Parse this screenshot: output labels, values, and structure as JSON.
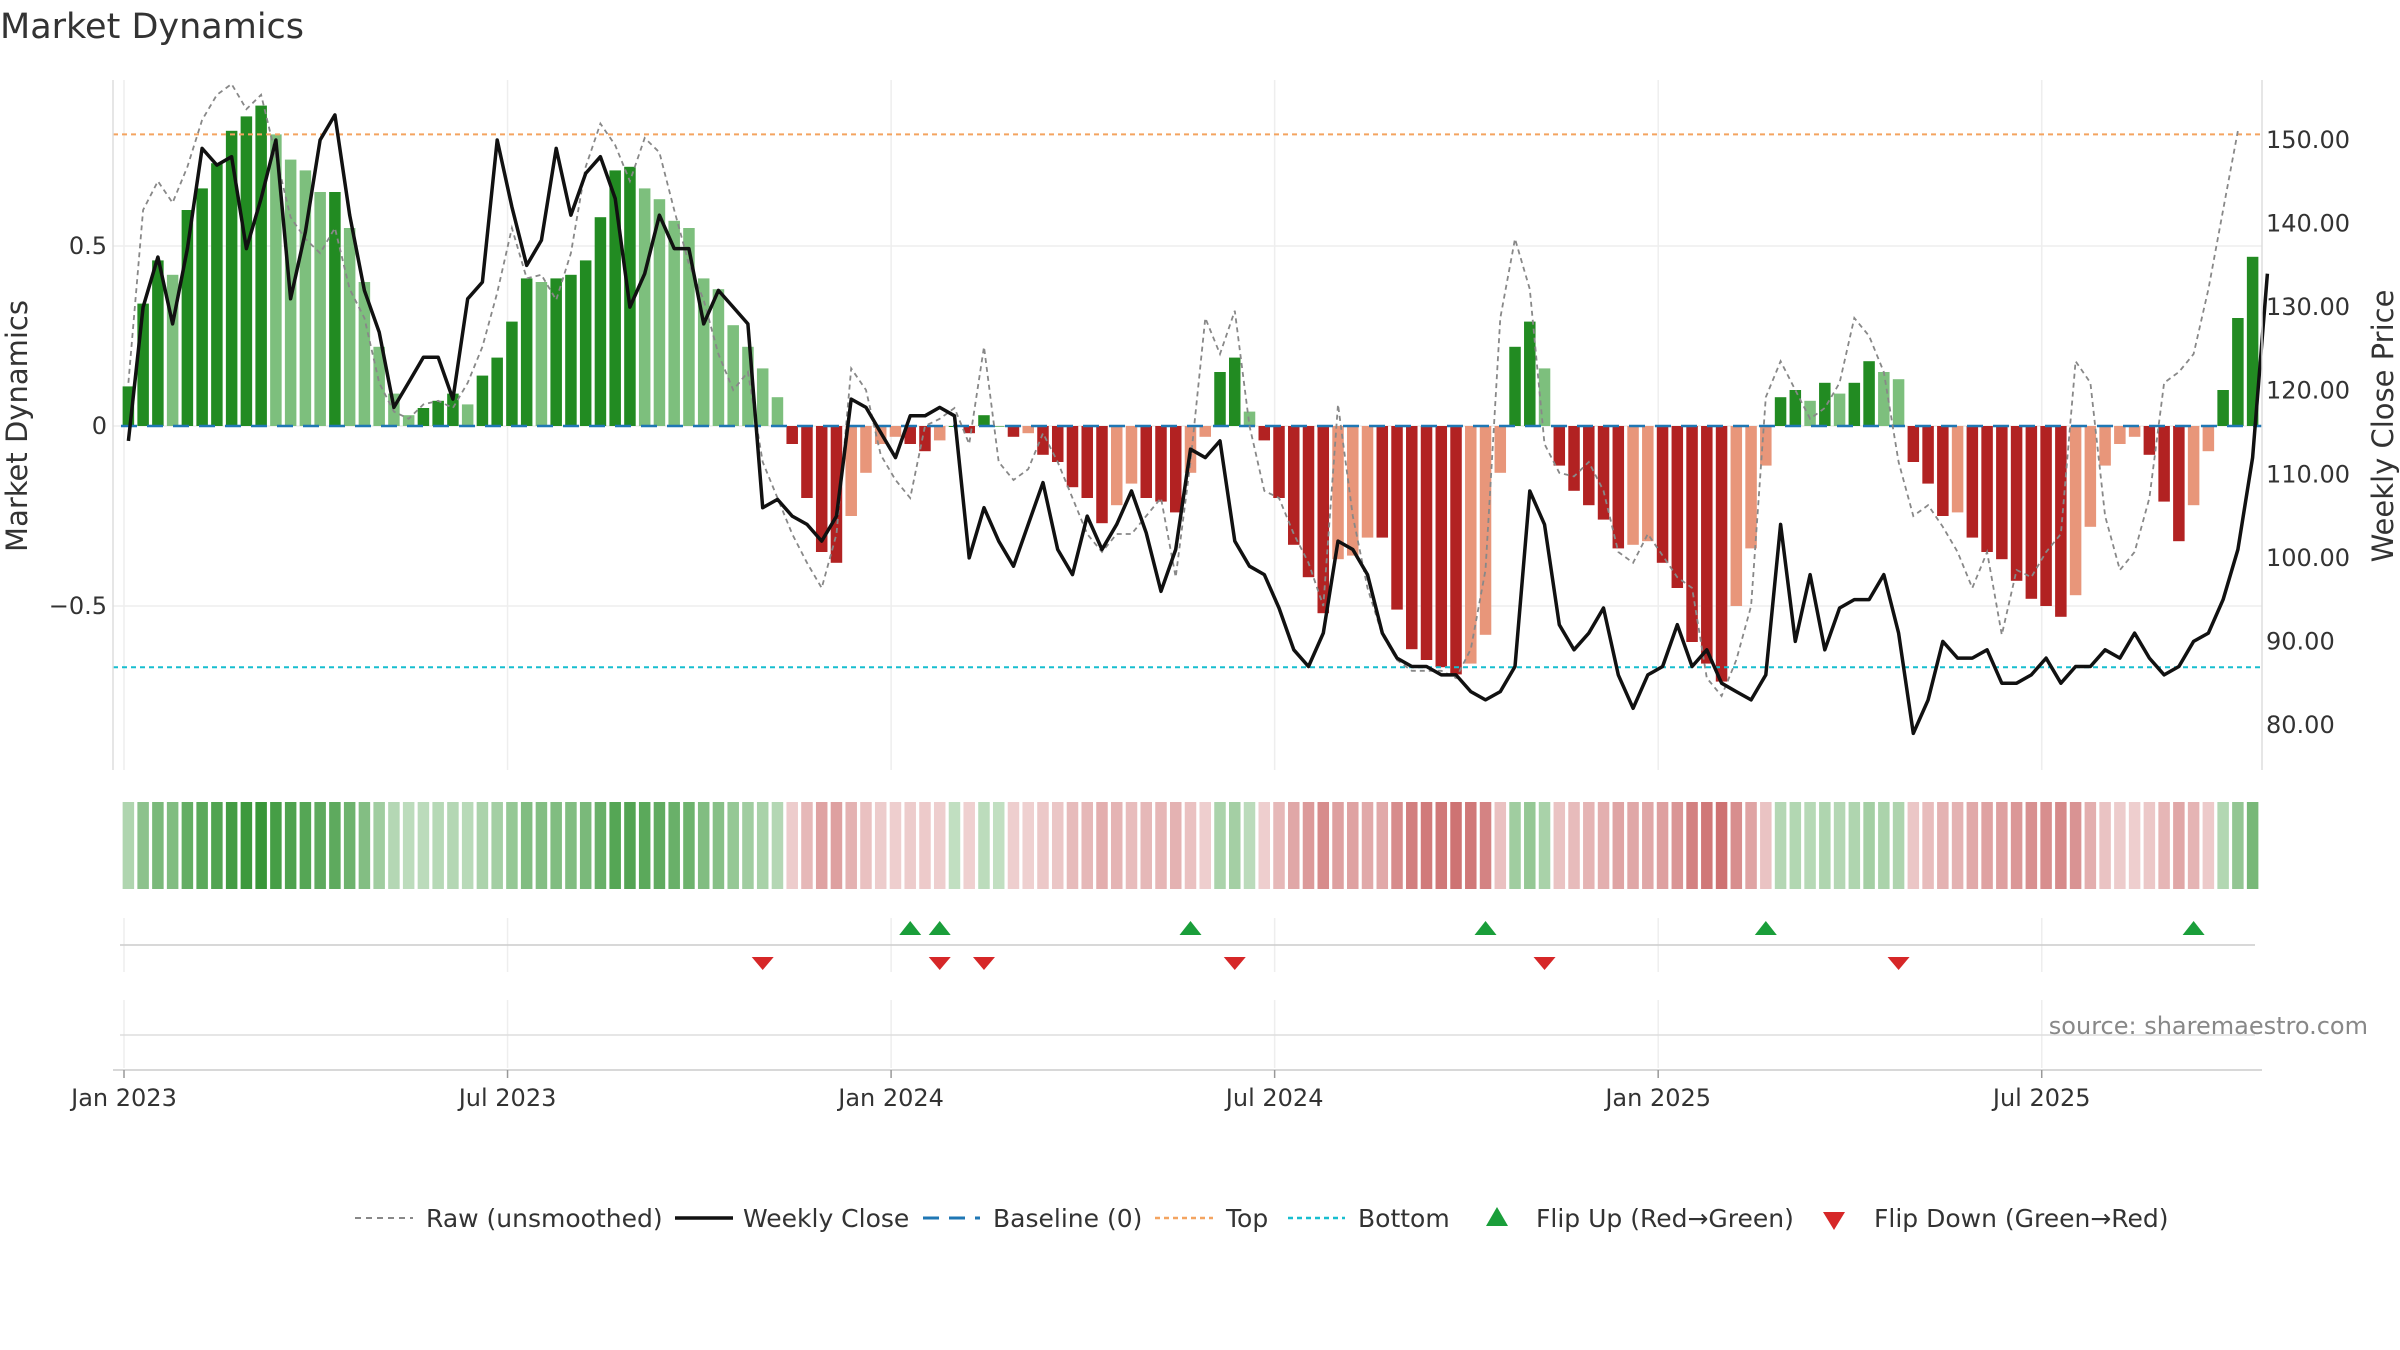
{
  "title": "Market Dynamics",
  "source": "source: sharemaestro.com",
  "colors": {
    "strong_green": "#228b22",
    "light_green": "#7dbf7d",
    "strong_red": "#b22222",
    "light_red": "#e8967a",
    "close_line": "#111111",
    "raw_line": "#888888",
    "baseline": "#1f77b4",
    "top": "#f4a460",
    "bottom": "#17becf",
    "flip_up": "#1a9e3a",
    "flip_down": "#d62728"
  },
  "chart_data": {
    "type": "bar",
    "title": "Market Dynamics",
    "xlabel": "",
    "ylabel_left": "Market Dynamics",
    "ylabel_right": "Weekly Close Price",
    "x_ticks": [
      "Jan 2023",
      "Jul 2023",
      "Jan 2024",
      "Jul 2024",
      "Jan 2025",
      "Jul 2025"
    ],
    "y_ticks_left": [
      "0.5",
      "0",
      "−0.5"
    ],
    "y_ticks_right": [
      "80.00",
      "90.00",
      "100.00",
      "110.00",
      "120.00",
      "130.00",
      "140.00",
      "150.00"
    ],
    "ylim_left": [
      -0.96,
      0.96
    ],
    "ylim_right": [
      75,
      158
    ],
    "grid": true,
    "legend_position": "bottom",
    "reference_lines": {
      "top": 0.81,
      "baseline": 0,
      "bottom": -0.67
    },
    "dynamics": [
      0.11,
      0.34,
      0.46,
      0.42,
      0.6,
      0.66,
      0.73,
      0.82,
      0.86,
      0.89,
      0.81,
      0.74,
      0.71,
      0.65,
      0.65,
      0.55,
      0.4,
      0.22,
      0.09,
      0.03,
      0.05,
      0.07,
      0.09,
      0.06,
      0.14,
      0.19,
      0.29,
      0.41,
      0.4,
      0.41,
      0.42,
      0.46,
      0.58,
      0.71,
      0.72,
      0.66,
      0.63,
      0.57,
      0.55,
      0.41,
      0.38,
      0.28,
      0.22,
      0.16,
      0.08,
      -0.05,
      -0.2,
      -0.35,
      -0.38,
      -0.25,
      -0.13,
      -0.05,
      -0.03,
      -0.05,
      -0.07,
      -0.04,
      0.0,
      -0.02,
      0.03,
      0.0,
      -0.03,
      -0.02,
      -0.08,
      -0.1,
      -0.17,
      -0.2,
      -0.27,
      -0.22,
      -0.16,
      -0.2,
      -0.21,
      -0.24,
      -0.13,
      -0.03,
      0.15,
      0.19,
      0.04,
      -0.04,
      -0.2,
      -0.33,
      -0.42,
      -0.52,
      -0.37,
      -0.36,
      -0.31,
      -0.31,
      -0.51,
      -0.62,
      -0.65,
      -0.67,
      -0.69,
      -0.66,
      -0.58,
      -0.13,
      0.22,
      0.29,
      0.16,
      -0.11,
      -0.18,
      -0.22,
      -0.26,
      -0.34,
      -0.33,
      -0.32,
      -0.38,
      -0.45,
      -0.6,
      -0.66,
      -0.71,
      -0.5,
      -0.34,
      -0.11,
      0.08,
      0.1,
      0.07,
      0.12,
      0.09,
      0.12,
      0.18,
      0.15,
      0.13,
      -0.1,
      -0.16,
      -0.25,
      -0.24,
      -0.31,
      -0.35,
      -0.37,
      -0.43,
      -0.48,
      -0.5,
      -0.53,
      -0.47,
      -0.28,
      -0.11,
      -0.05,
      -0.03,
      -0.08,
      -0.21,
      -0.32,
      -0.22,
      -0.07,
      0.1,
      0.3,
      0.47
    ],
    "weekly_close": [
      114,
      130,
      136,
      128,
      137,
      149,
      147,
      148,
      137,
      143,
      150,
      131,
      139,
      150,
      153,
      141,
      132,
      127,
      118,
      121,
      124,
      124,
      119,
      131,
      133,
      150,
      142,
      135,
      138,
      149,
      141,
      146,
      148,
      143,
      130,
      134,
      141,
      137,
      137,
      128,
      132,
      130,
      128,
      106,
      107,
      105,
      104,
      102,
      105,
      119,
      118,
      115,
      112,
      117,
      117,
      118,
      117,
      100,
      106,
      102,
      99,
      104,
      109,
      101,
      98,
      105,
      101,
      104,
      108,
      103,
      96,
      101,
      113,
      112,
      114,
      102,
      99,
      98,
      94,
      89,
      87,
      91,
      102,
      101,
      98,
      91,
      88,
      87,
      87,
      86,
      86,
      84,
      83,
      84,
      87,
      108,
      104,
      92,
      89,
      91,
      94,
      86,
      82,
      86,
      87,
      92,
      87,
      89,
      85,
      84,
      83,
      86,
      104,
      90,
      98,
      89,
      94,
      95,
      95,
      98,
      91,
      79,
      83,
      90,
      88,
      88,
      89,
      85,
      85,
      86,
      88,
      85,
      87,
      87,
      89,
      88,
      91,
      88,
      86,
      87,
      90,
      91,
      95,
      101,
      112,
      134
    ],
    "raw": [
      0.12,
      0.6,
      0.68,
      0.62,
      0.72,
      0.85,
      0.92,
      0.95,
      0.88,
      0.92,
      0.75,
      0.58,
      0.52,
      0.48,
      0.55,
      0.38,
      0.3,
      0.12,
      0.04,
      0.02,
      0.06,
      0.07,
      0.05,
      0.12,
      0.22,
      0.37,
      0.55,
      0.41,
      0.42,
      0.35,
      0.48,
      0.72,
      0.84,
      0.78,
      0.68,
      0.8,
      0.76,
      0.6,
      0.45,
      0.35,
      0.2,
      0.1,
      0.15,
      -0.1,
      -0.2,
      -0.3,
      -0.38,
      -0.45,
      -0.3,
      0.16,
      0.1,
      -0.08,
      -0.15,
      -0.2,
      0.0,
      0.02,
      0.05,
      -0.05,
      0.22,
      -0.1,
      -0.15,
      -0.12,
      -0.02,
      -0.1,
      -0.2,
      -0.3,
      -0.35,
      -0.3,
      -0.3,
      -0.25,
      -0.2,
      -0.42,
      -0.1,
      0.3,
      0.2,
      0.32,
      0.0,
      -0.18,
      -0.2,
      -0.3,
      -0.38,
      -0.5,
      0.06,
      -0.25,
      -0.45,
      -0.58,
      -0.65,
      -0.68,
      -0.68,
      -0.68,
      -0.7,
      -0.62,
      -0.4,
      0.3,
      0.52,
      0.38,
      -0.05,
      -0.13,
      -0.14,
      -0.1,
      -0.18,
      -0.35,
      -0.38,
      -0.3,
      -0.36,
      -0.42,
      -0.45,
      -0.7,
      -0.75,
      -0.65,
      -0.5,
      0.08,
      0.18,
      0.1,
      0.02,
      0.05,
      0.12,
      0.3,
      0.25,
      0.15,
      -0.1,
      -0.25,
      -0.22,
      -0.28,
      -0.35,
      -0.45,
      -0.35,
      -0.58,
      -0.4,
      -0.42,
      -0.35,
      -0.3,
      0.18,
      0.12,
      -0.25,
      -0.4,
      -0.35,
      -0.2,
      0.12,
      0.15,
      0.2,
      0.38,
      0.6,
      0.82
    ],
    "flip_up_weeks": [
      53,
      55,
      72,
      92,
      111,
      140
    ],
    "flip_down_weeks": [
      43,
      55,
      58,
      75,
      96,
      120
    ]
  },
  "legend": {
    "raw": "Raw (unsmoothed)",
    "close": "Weekly Close",
    "baseline": "Baseline (0)",
    "top": "Top",
    "bottom": "Bottom",
    "flip_up": "Flip Up (Red→Green)",
    "flip_down": "Flip Down (Green→Red)"
  }
}
